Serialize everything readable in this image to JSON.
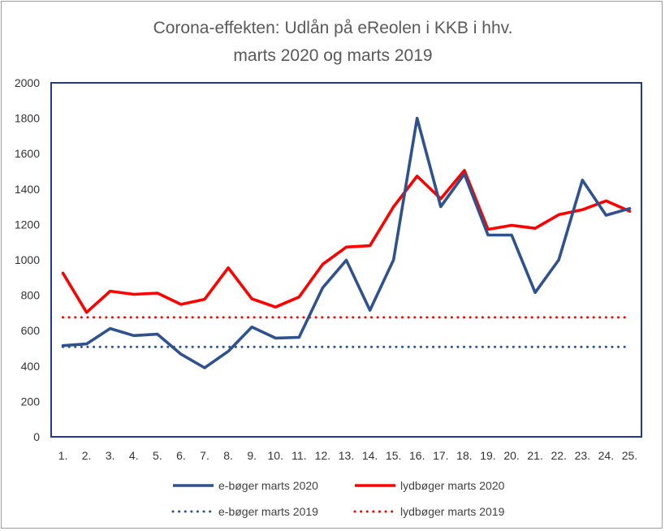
{
  "chart_data": {
    "type": "line",
    "title": "Corona-effekten: Udlån på eReolen i KKB i hhv.",
    "subtitle": "marts 2020 og marts 2019",
    "xlabel": "",
    "ylabel": "",
    "categories": [
      "1.",
      "2.",
      "3.",
      "4.",
      "5.",
      "6.",
      "7.",
      "8.",
      "9.",
      "10.",
      "11.",
      "12.",
      "13.",
      "14.",
      "15.",
      "16.",
      "17.",
      "18.",
      "19.",
      "20.",
      "21.",
      "22.",
      "23.",
      "24.",
      "25."
    ],
    "ylim": [
      0,
      2000
    ],
    "yticks": [
      "0",
      "200",
      "400",
      "600",
      "800",
      "1000",
      "1200",
      "1400",
      "1600",
      "1800",
      "2000"
    ],
    "grid": false,
    "legend_position": "bottom",
    "series": [
      {
        "name": "e-bøger marts 2020",
        "color": "#2f528f",
        "style": "solid",
        "values": [
          515,
          525,
          612,
          572,
          580,
          467,
          390,
          483,
          620,
          558,
          562,
          842,
          998,
          715,
          1000,
          1800,
          1300,
          1485,
          1140,
          1140,
          815,
          1000,
          1450,
          1252,
          1290
        ]
      },
      {
        "name": "lydbøger marts 2020",
        "color": "#ff0000",
        "style": "solid",
        "values": [
          925,
          703,
          823,
          805,
          812,
          748,
          777,
          955,
          780,
          733,
          790,
          975,
          1072,
          1080,
          1300,
          1473,
          1345,
          1505,
          1172,
          1195,
          1178,
          1255,
          1283,
          1333,
          1275
        ]
      },
      {
        "name": "e-bøger marts 2019",
        "color": "#2f528f",
        "style": "dotted",
        "values": [
          508,
          508,
          508,
          508,
          508,
          508,
          508,
          508,
          508,
          508,
          508,
          508,
          508,
          508,
          508,
          508,
          508,
          508,
          508,
          508,
          508,
          508,
          508,
          508,
          508
        ]
      },
      {
        "name": "lydbøger marts 2019",
        "color": "#ff0000",
        "style": "dotted",
        "values": [
          675,
          675,
          675,
          675,
          675,
          675,
          675,
          675,
          675,
          675,
          675,
          675,
          675,
          675,
          675,
          675,
          675,
          675,
          675,
          675,
          675,
          675,
          675,
          675,
          675
        ]
      }
    ]
  }
}
